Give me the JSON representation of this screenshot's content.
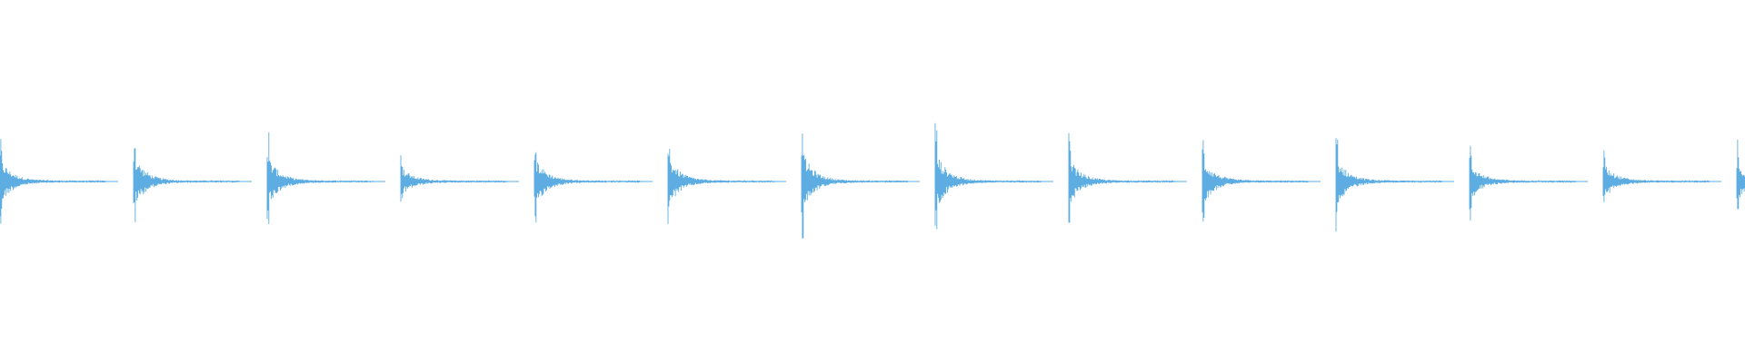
{
  "waveform": {
    "color": "#5DADE2",
    "background": "#FFFFFF",
    "hit_interval_seconds_equiv": 1,
    "hits": [
      {
        "index": 1,
        "peak_amplitude": 0.29
      },
      {
        "index": 2,
        "peak_amplitude": 0.34
      },
      {
        "index": 3,
        "peak_amplitude": 0.33
      },
      {
        "index": 4,
        "peak_amplitude": 0.18
      },
      {
        "index": 5,
        "peak_amplitude": 0.32
      },
      {
        "index": 6,
        "peak_amplitude": 0.33
      },
      {
        "index": 7,
        "peak_amplitude": 0.39
      },
      {
        "index": 8,
        "peak_amplitude": 0.39
      },
      {
        "index": 9,
        "peak_amplitude": 0.3
      },
      {
        "index": 10,
        "peak_amplitude": 0.3
      },
      {
        "index": 11,
        "peak_amplitude": 0.31
      },
      {
        "index": 12,
        "peak_amplitude": 0.24
      },
      {
        "index": 13,
        "peak_amplitude": 0.23
      },
      {
        "index": 14,
        "peak_amplitude": 0.26
      }
    ]
  }
}
